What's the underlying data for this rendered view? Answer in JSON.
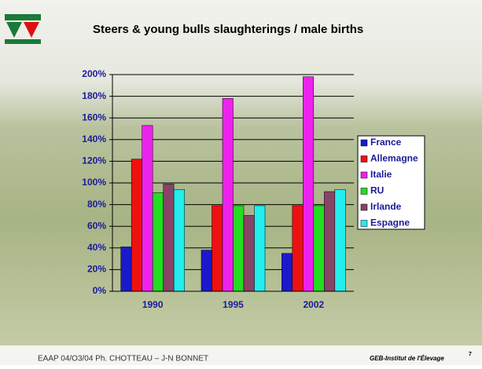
{
  "chart_data": {
    "type": "bar",
    "title": "Steers & young bulls slaughterings / male births",
    "categories": [
      "1990",
      "1995",
      "2002"
    ],
    "series": [
      {
        "name": "France",
        "color": "#1a1acc",
        "values": [
          41,
          38,
          35
        ]
      },
      {
        "name": "Allemagne",
        "color": "#ee1111",
        "values": [
          122,
          79,
          79
        ]
      },
      {
        "name": "Italie",
        "color": "#ee22ee",
        "values": [
          153,
          178,
          198
        ]
      },
      {
        "name": "RU",
        "color": "#22dd22",
        "values": [
          91,
          79,
          79
        ]
      },
      {
        "name": "Irlande",
        "color": "#884466",
        "values": [
          99,
          70,
          92
        ]
      },
      {
        "name": "Espagne",
        "color": "#22eeee",
        "values": [
          94,
          79,
          94
        ]
      }
    ],
    "ylim": [
      0,
      200
    ],
    "yticks": [
      {
        "value": 0,
        "label": "0%"
      },
      {
        "value": 20,
        "label": "20%"
      },
      {
        "value": 40,
        "label": "40%"
      },
      {
        "value": 60,
        "label": "60%"
      },
      {
        "value": 80,
        "label": "80%"
      },
      {
        "value": 100,
        "label": "100%"
      },
      {
        "value": 120,
        "label": "120%"
      },
      {
        "value": 140,
        "label": "140%"
      },
      {
        "value": 160,
        "label": "160%"
      },
      {
        "value": 180,
        "label": "180%"
      },
      {
        "value": 200,
        "label": "200%"
      }
    ],
    "grid": true,
    "legend": "right"
  },
  "footer": {
    "left": "EAAP  04/O3/04 Ph. CHOTTEAU – J-N BONNET",
    "right": "GEB-Institut de l'Élevage",
    "page": "7"
  }
}
